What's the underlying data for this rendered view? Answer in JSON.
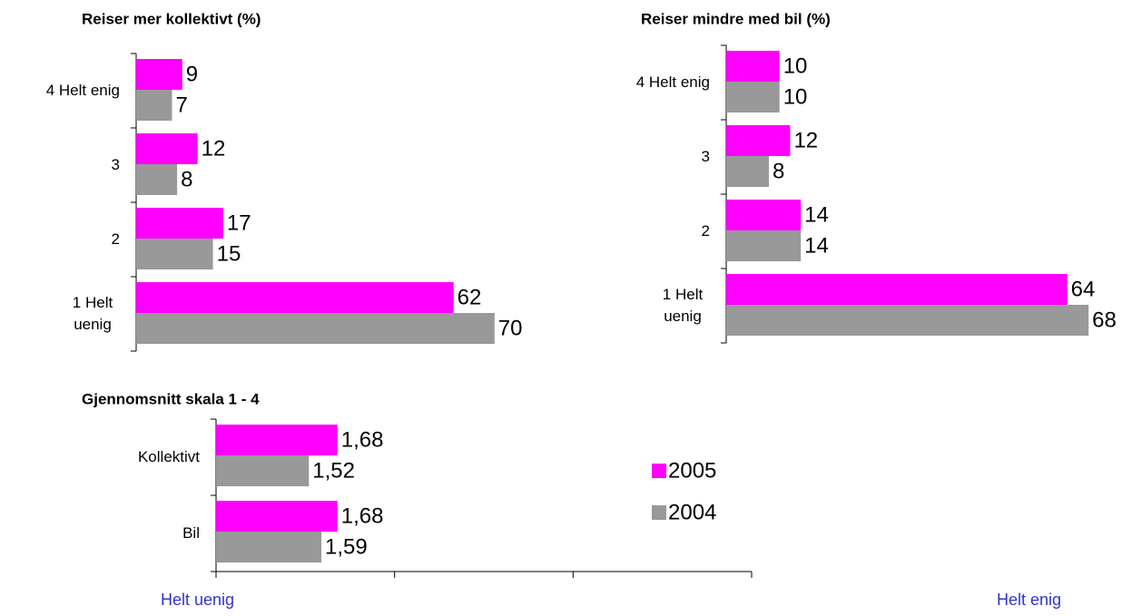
{
  "chart_data": [
    {
      "type": "bar",
      "orientation": "horizontal",
      "title": "Reiser mer kollektivt (%)",
      "categories": [
        "4 Helt enig",
        "3",
        "2",
        "1 Helt uenig"
      ],
      "series": [
        {
          "color": "#ff00ff",
          "values": [
            9,
            12,
            17,
            62
          ]
        },
        {
          "color": "#999999",
          "values": [
            7,
            8,
            15,
            70
          ]
        }
      ]
    },
    {
      "type": "bar",
      "orientation": "horizontal",
      "title": "Reiser mindre med bil (%)",
      "categories": [
        "4 Helt enig",
        "3",
        "2",
        "1 Helt uenig"
      ],
      "series": [
        {
          "color": "#ff00ff",
          "values": [
            10,
            12,
            14,
            64
          ]
        },
        {
          "color": "#999999",
          "values": [
            10,
            8,
            14,
            68
          ]
        }
      ]
    },
    {
      "type": "bar",
      "orientation": "horizontal",
      "title": "Gjennomsnitt skala 1 - 4",
      "categories": [
        "Kollektivt",
        "Bil"
      ],
      "series": [
        {
          "name": "2005",
          "color": "#ff00ff",
          "values": [
            1.68,
            1.68
          ],
          "value_labels": [
            "1,68",
            "1,68"
          ]
        },
        {
          "name": "2004",
          "color": "#999999",
          "values": [
            1.52,
            1.59
          ],
          "value_labels": [
            "1,52",
            "1,59"
          ]
        }
      ],
      "xlim": [
        1,
        4
      ],
      "xticks": [
        1,
        2,
        3,
        4
      ],
      "annotations": [
        "Helt uenig",
        "Helt enig"
      ]
    }
  ]
}
